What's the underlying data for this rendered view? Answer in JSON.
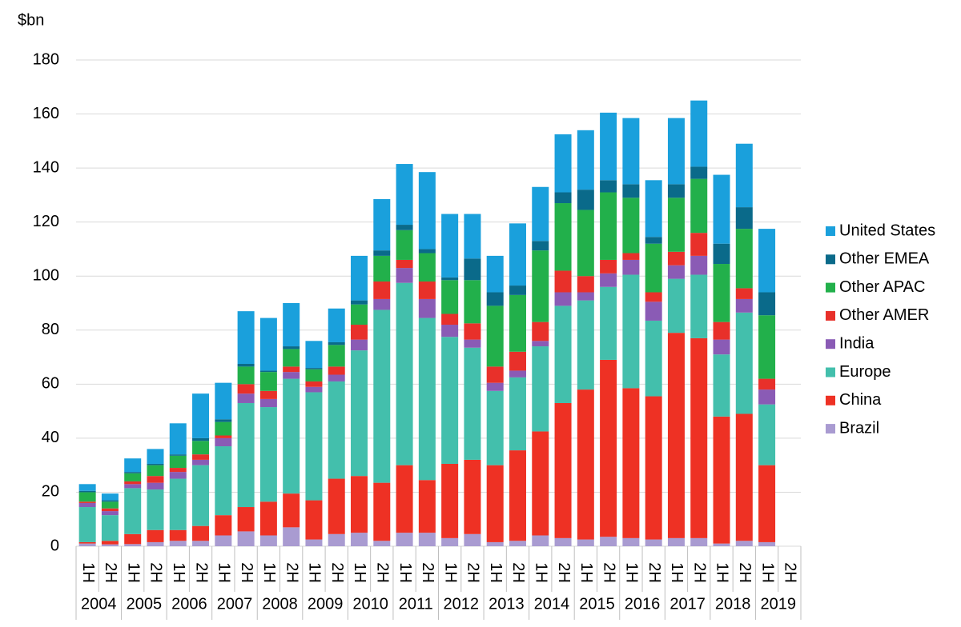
{
  "chart_data": {
    "type": "stacked_bar",
    "y_label": "$bn",
    "categories": [
      "1H",
      "2H",
      "1H",
      "2H",
      "1H",
      "2H",
      "1H",
      "2H",
      "1H",
      "2H",
      "1H",
      "2H",
      "1H",
      "2H",
      "1H",
      "2H",
      "1H",
      "2H",
      "1H",
      "2H",
      "1H",
      "2H",
      "1H",
      "2H",
      "1H",
      "2H",
      "1H",
      "2H",
      "1H",
      "2H",
      "1H",
      "2H"
    ],
    "category_groups": [
      "2004",
      "2005",
      "2006",
      "2007",
      "2008",
      "2009",
      "2010",
      "2011",
      "2012",
      "2013",
      "2014",
      "2015",
      "2016",
      "2017",
      "2018",
      "2019"
    ],
    "ylim": [
      0,
      180
    ],
    "yticks": [
      0,
      20,
      40,
      60,
      80,
      100,
      120,
      140,
      160,
      180
    ],
    "grid": true,
    "legend": "right",
    "series": [
      {
        "name": "Brazil",
        "color": "#a99bd1",
        "values": [
          1,
          0.7,
          0.8,
          1.5,
          2,
          2,
          4,
          5.5,
          4,
          7,
          2.5,
          4.5,
          5,
          2,
          5,
          5,
          3,
          4.5,
          1.5,
          2,
          4,
          3,
          2.5,
          3.5,
          3,
          2.5,
          3,
          3,
          1,
          2,
          1.5,
          null
        ]
      },
      {
        "name": "China",
        "color": "#ee3124",
        "values": [
          0.5,
          1.3,
          3.7,
          4.5,
          4,
          5.5,
          7.5,
          9,
          12.5,
          12.5,
          14.5,
          20.5,
          21,
          21.5,
          25,
          19.5,
          27.5,
          27.5,
          28.5,
          33.5,
          38.5,
          50,
          55.5,
          65.5,
          55.5,
          53,
          76,
          74,
          47,
          47,
          28.5,
          null
        ]
      },
      {
        "name": "Europe",
        "color": "#43bfac",
        "values": [
          13,
          9.5,
          17,
          15,
          19,
          22.5,
          25.5,
          38.5,
          35,
          42.5,
          40,
          36,
          46.5,
          64,
          67.5,
          60,
          47,
          41.5,
          27.5,
          27,
          31.5,
          36,
          33,
          27,
          42,
          28,
          20,
          23.5,
          23,
          37.5,
          22.5,
          null
        ]
      },
      {
        "name": "India",
        "color": "#8a5bb5",
        "values": [
          1.5,
          1.5,
          1.5,
          2.5,
          2.5,
          2,
          3,
          3.5,
          3,
          2.5,
          2,
          2.5,
          4,
          4,
          5.5,
          7,
          4.5,
          3,
          3,
          2.5,
          2,
          5,
          3,
          5,
          5.5,
          7,
          5,
          7,
          5.5,
          5,
          5.5,
          null
        ]
      },
      {
        "name": "Other AMER",
        "color": "#e8302a",
        "values": [
          0.5,
          1,
          1,
          2.5,
          1.5,
          2,
          1,
          3.5,
          3,
          2,
          2,
          3,
          5.5,
          6.5,
          3,
          6.5,
          4,
          6,
          6,
          7,
          7,
          8,
          6,
          5,
          2.5,
          3.5,
          5,
          8.5,
          6.5,
          4,
          4,
          null
        ]
      },
      {
        "name": "Other APAC",
        "color": "#22b04b",
        "values": [
          3.5,
          2.5,
          3,
          4,
          4.5,
          5,
          5,
          6.5,
          7,
          6.5,
          4.5,
          8,
          7.5,
          9.5,
          11,
          10.5,
          12.5,
          16,
          22.5,
          21,
          26.5,
          25,
          24.5,
          25,
          20.5,
          18,
          20,
          20,
          21.5,
          22,
          23.5,
          null
        ]
      },
      {
        "name": "Other EMEA",
        "color": "#0a6a8a",
        "values": [
          0.5,
          0.5,
          0.5,
          0.5,
          0.5,
          1,
          1,
          1,
          0.5,
          1,
          0.5,
          1,
          1.5,
          2,
          2,
          1.5,
          1,
          8,
          5,
          3.5,
          3.5,
          4,
          7.5,
          4.5,
          5,
          2.5,
          5,
          4.5,
          7.5,
          8,
          8.5,
          null
        ]
      },
      {
        "name": "United States",
        "color": "#1aa0dc",
        "values": [
          2.5,
          2.5,
          5,
          5.5,
          11.5,
          16.5,
          13.5,
          19.5,
          19.5,
          16,
          10,
          12.5,
          16.5,
          19,
          22.5,
          28.5,
          23.5,
          16.5,
          13.5,
          23,
          20,
          21.5,
          22,
          25,
          24.5,
          21,
          24.5,
          24.5,
          25.5,
          23.5,
          23.5,
          null
        ]
      }
    ]
  }
}
